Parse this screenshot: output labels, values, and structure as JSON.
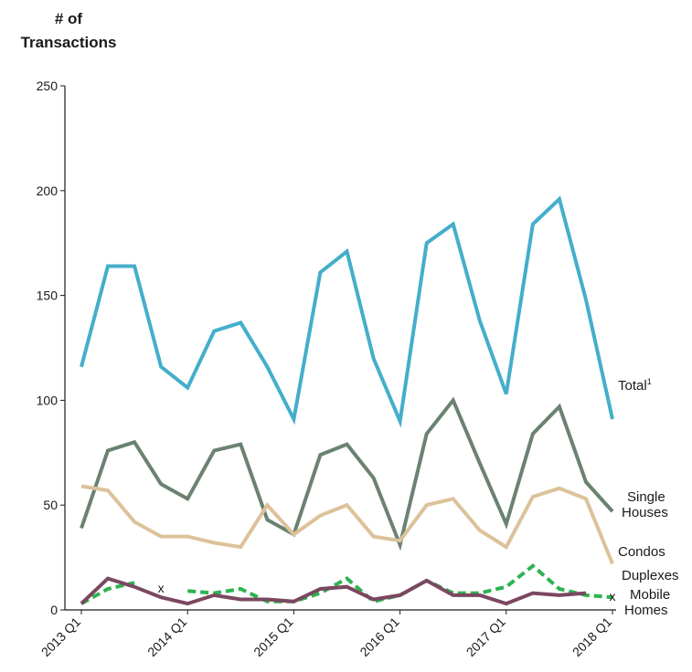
{
  "chart_data": {
    "type": "line",
    "ylabel_line1": "# of",
    "ylabel_line2": "Transactions",
    "ylim": [
      0,
      250
    ],
    "yticks": [
      0,
      50,
      100,
      150,
      200,
      250
    ],
    "grid": false,
    "x_tick_labels": [
      "2013 Q1",
      "2014 Q1",
      "2015 Q1",
      "2016 Q1",
      "2017 Q1",
      "2018 Q1"
    ],
    "x": [
      "2013 Q1",
      "2013 Q2",
      "2013 Q3",
      "2013 Q4",
      "2014 Q1",
      "2014 Q2",
      "2014 Q3",
      "2014 Q4",
      "2015 Q1",
      "2015 Q2",
      "2015 Q3",
      "2015 Q4",
      "2016 Q1",
      "2016 Q2",
      "2016 Q3",
      "2016 Q4",
      "2017 Q1",
      "2017 Q2",
      "2017 Q3",
      "2017 Q4",
      "2018 Q1"
    ],
    "series": [
      {
        "key": "total",
        "label": "Total",
        "sup": "1",
        "color": "#44aecb",
        "dash": false,
        "values": [
          116,
          164,
          164,
          116,
          106,
          133,
          137,
          116,
          91,
          161,
          171,
          120,
          90,
          175,
          184,
          138,
          103,
          184,
          196,
          148,
          91
        ]
      },
      {
        "key": "single",
        "label_line1": "Single",
        "label_line2": "Houses",
        "color": "#6a8272",
        "dash": false,
        "values": [
          39,
          76,
          80,
          60,
          53,
          76,
          79,
          43,
          36,
          74,
          79,
          63,
          31,
          84,
          100,
          70,
          41,
          84,
          97,
          61,
          47
        ]
      },
      {
        "key": "condos",
        "label": "Condos",
        "color": "#dcc29a",
        "dash": false,
        "values": [
          59,
          57,
          42,
          35,
          35,
          32,
          30,
          50,
          36,
          45,
          50,
          35,
          33,
          50,
          53,
          38,
          30,
          54,
          58,
          53,
          22
        ]
      },
      {
        "key": "duplexes",
        "label": "Duplexes",
        "color": "#2eb351",
        "dash": true,
        "values": [
          3,
          10,
          13,
          null,
          9,
          8,
          10,
          4,
          4,
          8,
          15,
          4,
          7,
          14,
          8,
          8,
          11,
          21,
          10,
          7,
          6
        ]
      },
      {
        "key": "mobile",
        "label_line1": "Mobile",
        "label_line2": "Homes",
        "color": "#7a4860",
        "dash": false,
        "values": [
          3,
          15,
          11,
          6,
          3,
          7,
          5,
          5,
          4,
          10,
          11,
          5,
          7,
          14,
          7,
          7,
          3,
          8,
          7,
          8,
          null
        ]
      }
    ],
    "markers": [
      {
        "text": "x",
        "x": "2013 Q4",
        "y": 10
      },
      {
        "text": "x",
        "x": "2018 Q1",
        "y": 6
      }
    ]
  }
}
